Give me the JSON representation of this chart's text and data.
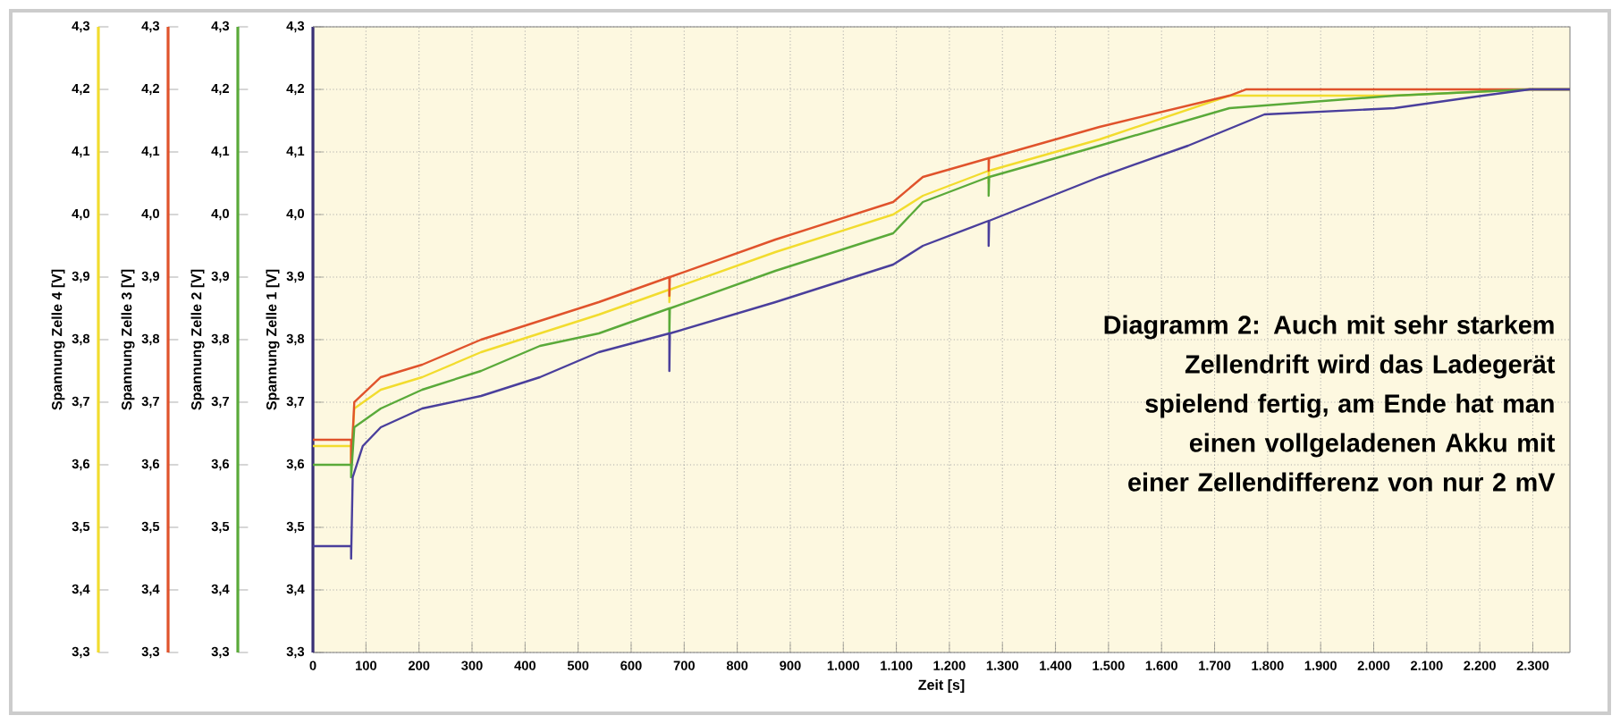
{
  "chart_data": {
    "type": "line",
    "xlabel": "Zeit [s]",
    "ylabel": "Spannung Zelle 1 [V]",
    "xlim": [
      0,
      2370
    ],
    "xticks": [
      0,
      100,
      200,
      300,
      400,
      500,
      600,
      700,
      800,
      900,
      {
        "value": 1000,
        "label": "1.000"
      },
      {
        "value": 1100,
        "label": "1.100"
      },
      {
        "value": 1200,
        "label": "1.200"
      },
      {
        "value": 1300,
        "label": "1.300"
      },
      {
        "value": 1400,
        "label": "1.400"
      },
      {
        "value": 1500,
        "label": "1.500"
      },
      {
        "value": 1600,
        "label": "1.600"
      },
      {
        "value": 1700,
        "label": "1.700"
      },
      {
        "value": 1800,
        "label": "1.800"
      },
      {
        "value": 1900,
        "label": "1.900"
      },
      {
        "value": 2000,
        "label": "2.000"
      },
      {
        "value": 2100,
        "label": "2.100"
      },
      {
        "value": 2200,
        "label": "2.200"
      },
      {
        "value": 2300,
        "label": "2.300"
      }
    ],
    "ylim": [
      3.3,
      4.3
    ],
    "yticks": [
      {
        "value": 3.3,
        "label": "3,3"
      },
      {
        "value": 3.4,
        "label": "3,4"
      },
      {
        "value": 3.5,
        "label": "3,5"
      },
      {
        "value": 3.6,
        "label": "3,6"
      },
      {
        "value": 3.7,
        "label": "3,7"
      },
      {
        "value": 3.8,
        "label": "3,8"
      },
      {
        "value": 3.9,
        "label": "3,9"
      },
      {
        "value": 4.0,
        "label": "4,0"
      },
      {
        "value": 4.1,
        "label": "4,1"
      },
      {
        "value": 4.2,
        "label": "4,2"
      },
      {
        "value": 4.3,
        "label": "4,3"
      }
    ],
    "grid": true,
    "annotations": [
      "Diagramm 2: Auch mit sehr starkem Zellendrift wird das Ladegerät spielend fertig, am Ende hat man einen vollgeladenen Akku mit einer Zellendifferenz von nur 2 mV",
      "Spannung Zelle 2 [V]",
      "Spannung Zelle 3 [V]",
      "Spannung Zelle 4 [V]"
    ],
    "series": [
      {
        "color": "#4a3f9c",
        "x": [
          0,
          72,
          72,
          75,
          94,
          128,
          206,
          317,
          428,
          539,
          672,
          672,
          673,
          872,
          1094,
          1150,
          1274,
          1274,
          1275,
          1483,
          1650,
          1794,
          2039,
          2206,
          2294,
          2370
        ],
        "values": [
          3.47,
          3.47,
          3.45,
          3.58,
          3.63,
          3.66,
          3.69,
          3.71,
          3.74,
          3.78,
          3.81,
          3.75,
          3.81,
          3.86,
          3.92,
          3.95,
          3.99,
          3.95,
          3.99,
          4.06,
          4.11,
          4.16,
          4.17,
          4.19,
          4.2,
          4.2
        ]
      },
      {
        "color": "#5aaa3a",
        "x": [
          0,
          72,
          72,
          78,
          128,
          206,
          317,
          428,
          539,
          672,
          672,
          673,
          872,
          1094,
          1150,
          1274,
          1274,
          1275,
          1483,
          1728,
          2039,
          2294,
          2370
        ],
        "values": [
          3.6,
          3.6,
          3.58,
          3.66,
          3.69,
          3.72,
          3.75,
          3.79,
          3.81,
          3.85,
          3.81,
          3.85,
          3.91,
          3.97,
          4.02,
          4.06,
          4.03,
          4.06,
          4.11,
          4.17,
          4.19,
          4.2,
          4.2
        ]
      },
      {
        "color": "#e0532c",
        "x": [
          0,
          72,
          72,
          78,
          128,
          206,
          317,
          428,
          539,
          672,
          672,
          673,
          872,
          1094,
          1150,
          1274,
          1274,
          1275,
          1483,
          1728,
          1760,
          2370
        ],
        "values": [
          3.64,
          3.64,
          3.6,
          3.7,
          3.74,
          3.76,
          3.8,
          3.83,
          3.86,
          3.9,
          3.87,
          3.9,
          3.96,
          4.02,
          4.06,
          4.09,
          4.07,
          4.09,
          4.14,
          4.19,
          4.2,
          4.2
        ]
      },
      {
        "color": "#f2dc2e",
        "x": [
          0,
          72,
          72,
          78,
          128,
          206,
          317,
          428,
          539,
          672,
          672,
          673,
          872,
          1094,
          1150,
          1274,
          1274,
          1275,
          1483,
          1728,
          2039,
          2294,
          2370
        ],
        "values": [
          3.63,
          3.63,
          3.6,
          3.69,
          3.72,
          3.74,
          3.78,
          3.81,
          3.84,
          3.88,
          3.86,
          3.88,
          3.94,
          4.0,
          4.03,
          4.07,
          4.05,
          4.07,
          4.12,
          4.19,
          4.19,
          4.2,
          4.2
        ]
      }
    ]
  }
}
